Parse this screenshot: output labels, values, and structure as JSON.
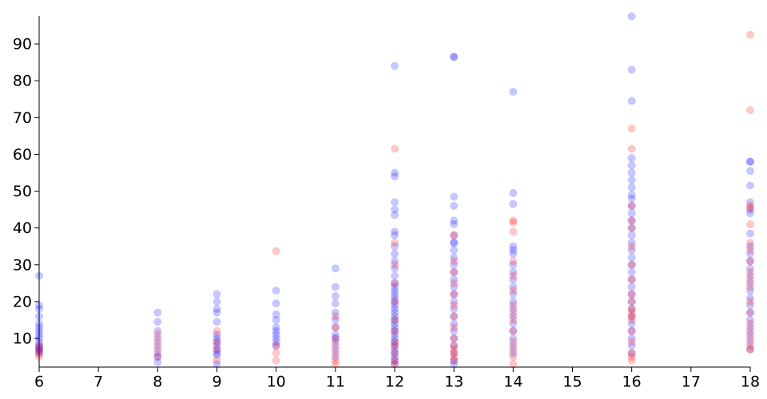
{
  "chart_data": {
    "type": "scatter",
    "xlim": [
      6,
      18
    ],
    "xticks": [
      6,
      7,
      8,
      9,
      10,
      11,
      12,
      13,
      14,
      15,
      16,
      17,
      18
    ],
    "ylim": [
      2.2,
      97.6
    ],
    "yticks": [
      10,
      20,
      30,
      40,
      50,
      60,
      70,
      80,
      90
    ],
    "series": [
      {
        "color": "#0000ff",
        "x": [
          6,
          6,
          6,
          6,
          6,
          6,
          6,
          6,
          6,
          6,
          6,
          6,
          6,
          6,
          6,
          8,
          8,
          8,
          8,
          8,
          8,
          8,
          8,
          9,
          9,
          9,
          9,
          9,
          9,
          9,
          9,
          9,
          9,
          9,
          9,
          9,
          10,
          10,
          10,
          10,
          10,
          10,
          10,
          10,
          10,
          10,
          11,
          11,
          11,
          11,
          11,
          11,
          11,
          11,
          11,
          11,
          11,
          11,
          12,
          12,
          12,
          12,
          12,
          12,
          12,
          12,
          12,
          12,
          12,
          12,
          12,
          12,
          12,
          12,
          12,
          12,
          12,
          12,
          12,
          12,
          12,
          12,
          12,
          12,
          12,
          12,
          12,
          12,
          12,
          12,
          12,
          12,
          12,
          12,
          13,
          13,
          13,
          13,
          13,
          13,
          13,
          13,
          13,
          13,
          13,
          13,
          13,
          13,
          13,
          13,
          13,
          13,
          13,
          13,
          13,
          13,
          13,
          13,
          13,
          13,
          14,
          14,
          14,
          14,
          14,
          14,
          14,
          14,
          14,
          14,
          14,
          14,
          14,
          14,
          14,
          14,
          14,
          14,
          14,
          16,
          16,
          16,
          16,
          16,
          16,
          16,
          16,
          16,
          16,
          16,
          16,
          16,
          16,
          16,
          16,
          16,
          16,
          16,
          16,
          16,
          16,
          16,
          16,
          16,
          16,
          16,
          16,
          16,
          16,
          16,
          18,
          18,
          18,
          18,
          18,
          18,
          18,
          18,
          18,
          18,
          18,
          18,
          18,
          18,
          18,
          18,
          18,
          18,
          18,
          18,
          18,
          18,
          18
        ],
        "values": [
          27,
          19,
          18,
          16,
          14,
          13,
          12,
          11,
          10,
          9,
          8,
          7.5,
          7,
          6.5,
          6,
          17,
          14.5,
          12,
          10,
          8,
          6,
          5,
          3.5,
          22,
          20,
          18,
          17,
          14.5,
          11,
          10,
          9,
          8,
          7,
          6,
          5.5,
          3,
          23,
          19.5,
          16.5,
          15,
          13,
          12,
          11,
          10,
          9,
          8,
          29,
          24,
          21.5,
          19.5,
          17,
          15,
          13,
          11,
          10,
          9,
          7,
          5,
          84,
          55,
          54,
          47,
          45,
          43.5,
          39,
          38,
          35,
          33,
          31,
          29,
          27,
          25,
          24,
          23,
          22,
          21,
          20,
          19,
          18,
          17,
          16,
          15,
          14,
          13,
          12,
          11,
          10,
          9,
          8,
          7,
          6,
          5,
          4,
          3,
          86.5,
          86.5,
          48.5,
          46,
          42,
          41,
          38,
          36,
          36,
          34,
          32,
          30,
          28,
          26,
          24,
          22,
          20,
          18,
          16,
          14,
          12,
          10,
          8,
          6,
          4,
          3,
          77,
          49.5,
          46.5,
          35,
          34,
          33,
          30,
          28,
          26,
          24,
          22,
          20,
          18,
          16,
          14,
          12,
          10,
          8,
          6,
          97.5,
          83,
          74.5,
          59,
          57,
          55,
          53,
          51,
          49,
          48,
          46,
          44,
          42,
          40,
          38,
          36,
          34,
          32,
          30,
          28,
          26,
          24,
          22,
          20,
          18,
          16,
          14,
          12,
          10,
          8,
          6,
          58,
          58,
          55.5,
          51.5,
          47,
          45,
          44,
          38.5,
          35,
          33,
          31,
          29,
          27,
          25,
          23,
          21,
          19,
          17,
          15,
          13,
          11,
          9,
          7
        ]
      },
      {
        "color": "#ff0000",
        "x": [
          6,
          6,
          6,
          6,
          8,
          8,
          8,
          8,
          9,
          9,
          9,
          9,
          10,
          10,
          10,
          10,
          11,
          11,
          11,
          11,
          11,
          11,
          11,
          12,
          12,
          12,
          12,
          12,
          12,
          12,
          12,
          12,
          12,
          12,
          12,
          13,
          13,
          13,
          13,
          13,
          13,
          13,
          13,
          13,
          13,
          13,
          13,
          13,
          13,
          14,
          14,
          14,
          14,
          14,
          14,
          14,
          14,
          14,
          14,
          14,
          14,
          14,
          14,
          16,
          16,
          16,
          16,
          16,
          16,
          16,
          16,
          16,
          16,
          16,
          16,
          16,
          16,
          16,
          16,
          16,
          16,
          16,
          18,
          18,
          18,
          18,
          18,
          18,
          18,
          18,
          18,
          18,
          18,
          18,
          18,
          18,
          18,
          18,
          18,
          18
        ],
        "values": [
          5,
          6,
          7,
          8,
          5,
          7,
          9,
          11,
          12,
          9,
          7,
          4,
          33.7,
          4,
          6,
          8,
          16,
          13,
          10,
          8,
          6,
          4,
          3,
          61.5,
          36,
          30,
          25,
          20,
          15,
          12,
          9,
          8,
          6,
          4,
          3,
          38,
          31,
          28,
          25,
          22,
          19,
          16,
          13,
          10,
          8,
          7,
          6,
          5,
          4,
          42,
          41.5,
          39,
          31,
          27,
          23,
          19,
          17,
          15,
          12,
          9,
          7,
          5,
          3,
          67,
          61.5,
          46,
          42,
          40,
          35,
          30,
          26,
          22,
          20,
          18,
          17,
          16,
          15,
          12,
          9,
          6,
          5,
          4,
          92.5,
          72,
          46,
          45.5,
          41,
          36,
          34,
          31,
          28,
          26,
          24,
          20,
          17,
          14,
          12,
          10,
          8,
          7
        ]
      }
    ]
  }
}
